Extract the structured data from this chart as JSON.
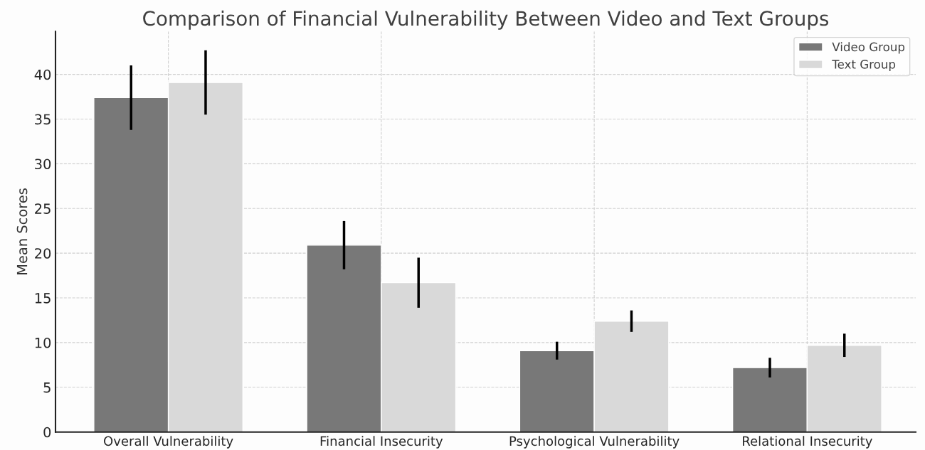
{
  "chart_data": {
    "type": "bar",
    "title": "Comparison of Financial Vulnerability Between Video and Text Groups",
    "ylabel": "Mean Scores",
    "categories": [
      "Overall Vulnerability",
      "Financial Insecurity",
      "Psychological Vulnerability",
      "Relational Insecurity"
    ],
    "series": [
      {
        "name": "Video Group",
        "color": "#787878",
        "values": [
          37.4,
          20.9,
          9.1,
          7.2
        ],
        "errors": [
          3.6,
          2.7,
          1.0,
          1.1
        ]
      },
      {
        "name": "Text Group",
        "color": "#d9d9d9",
        "values": [
          39.1,
          16.7,
          12.4,
          9.7
        ],
        "errors": [
          3.6,
          2.8,
          1.2,
          1.3
        ]
      }
    ],
    "ylim": [
      0,
      44.8
    ],
    "yticks": [
      0,
      5,
      10,
      15,
      20,
      25,
      30,
      35,
      40
    ],
    "grid": true,
    "legend": "top right"
  }
}
